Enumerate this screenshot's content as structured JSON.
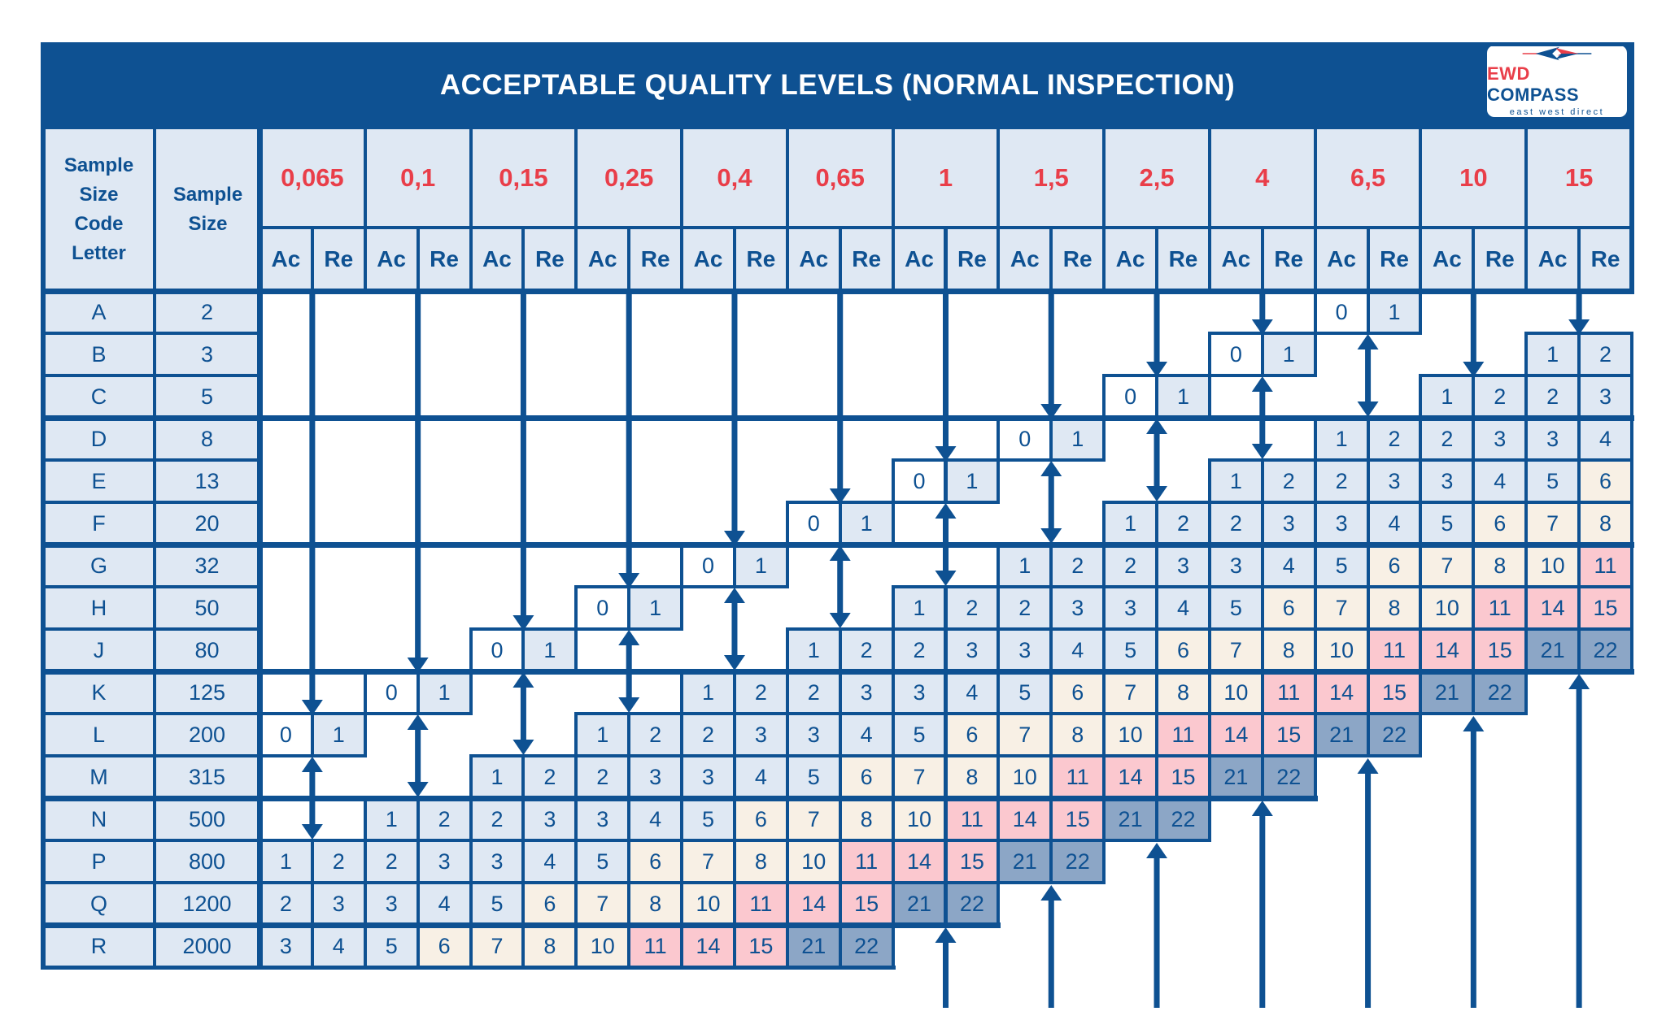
{
  "chart_data": {
    "type": "table",
    "title": "ACCEPTABLE QUALITY LEVELS (NORMAL INSPECTION)",
    "row_header_labels": [
      "Sample Size Code Letter",
      "Sample Size"
    ],
    "aql_levels": [
      "0,065",
      "0,1",
      "0,15",
      "0,25",
      "0,4",
      "0,65",
      "1",
      "1,5",
      "2,5",
      "4",
      "6,5",
      "10",
      "15"
    ],
    "sub_columns": [
      "Ac",
      "Re"
    ],
    "rows": [
      {
        "letter": "A",
        "size": "2",
        "cells": [
          null,
          null,
          null,
          null,
          null,
          null,
          null,
          null,
          null,
          null,
          [
            0,
            1
          ],
          null,
          null
        ]
      },
      {
        "letter": "B",
        "size": "3",
        "cells": [
          null,
          null,
          null,
          null,
          null,
          null,
          null,
          null,
          null,
          [
            0,
            1
          ],
          null,
          null,
          [
            1,
            2
          ]
        ]
      },
      {
        "letter": "C",
        "size": "5",
        "cells": [
          null,
          null,
          null,
          null,
          null,
          null,
          null,
          null,
          [
            0,
            1
          ],
          null,
          null,
          [
            1,
            2
          ],
          [
            2,
            3
          ]
        ]
      },
      {
        "letter": "D",
        "size": "8",
        "cells": [
          null,
          null,
          null,
          null,
          null,
          null,
          null,
          [
            0,
            1
          ],
          null,
          null,
          [
            1,
            2
          ],
          [
            2,
            3
          ],
          [
            3,
            4
          ]
        ]
      },
      {
        "letter": "E",
        "size": "13",
        "cells": [
          null,
          null,
          null,
          null,
          null,
          null,
          [
            0,
            1
          ],
          null,
          null,
          [
            1,
            2
          ],
          [
            2,
            3
          ],
          [
            3,
            4
          ],
          [
            5,
            6
          ]
        ]
      },
      {
        "letter": "F",
        "size": "20",
        "cells": [
          null,
          null,
          null,
          null,
          null,
          [
            0,
            1
          ],
          null,
          null,
          [
            1,
            2
          ],
          [
            2,
            3
          ],
          [
            3,
            4
          ],
          [
            5,
            6
          ],
          [
            7,
            8
          ]
        ]
      },
      {
        "letter": "G",
        "size": "32",
        "cells": [
          null,
          null,
          null,
          null,
          [
            0,
            1
          ],
          null,
          null,
          [
            1,
            2
          ],
          [
            2,
            3
          ],
          [
            3,
            4
          ],
          [
            5,
            6
          ],
          [
            7,
            8
          ],
          [
            10,
            11
          ]
        ]
      },
      {
        "letter": "H",
        "size": "50",
        "cells": [
          null,
          null,
          null,
          [
            0,
            1
          ],
          null,
          null,
          [
            1,
            2
          ],
          [
            2,
            3
          ],
          [
            3,
            4
          ],
          [
            5,
            6
          ],
          [
            7,
            8
          ],
          [
            10,
            11
          ],
          [
            14,
            15
          ]
        ]
      },
      {
        "letter": "J",
        "size": "80",
        "cells": [
          null,
          null,
          [
            0,
            1
          ],
          null,
          null,
          [
            1,
            2
          ],
          [
            2,
            3
          ],
          [
            3,
            4
          ],
          [
            5,
            6
          ],
          [
            7,
            8
          ],
          [
            10,
            11
          ],
          [
            14,
            15
          ],
          [
            21,
            22
          ]
        ]
      },
      {
        "letter": "K",
        "size": "125",
        "cells": [
          null,
          [
            0,
            1
          ],
          null,
          null,
          [
            1,
            2
          ],
          [
            2,
            3
          ],
          [
            3,
            4
          ],
          [
            5,
            6
          ],
          [
            7,
            8
          ],
          [
            10,
            11
          ],
          [
            14,
            15
          ],
          [
            21,
            22
          ],
          null
        ]
      },
      {
        "letter": "L",
        "size": "200",
        "cells": [
          [
            0,
            1
          ],
          null,
          null,
          [
            1,
            2
          ],
          [
            2,
            3
          ],
          [
            3,
            4
          ],
          [
            5,
            6
          ],
          [
            7,
            8
          ],
          [
            10,
            11
          ],
          [
            14,
            15
          ],
          [
            21,
            22
          ],
          null,
          null
        ]
      },
      {
        "letter": "M",
        "size": "315",
        "cells": [
          null,
          null,
          [
            1,
            2
          ],
          [
            2,
            3
          ],
          [
            3,
            4
          ],
          [
            5,
            6
          ],
          [
            7,
            8
          ],
          [
            10,
            11
          ],
          [
            14,
            15
          ],
          [
            21,
            22
          ],
          null,
          null,
          null
        ]
      },
      {
        "letter": "N",
        "size": "500",
        "cells": [
          null,
          [
            1,
            2
          ],
          [
            2,
            3
          ],
          [
            3,
            4
          ],
          [
            5,
            6
          ],
          [
            7,
            8
          ],
          [
            10,
            11
          ],
          [
            14,
            15
          ],
          [
            21,
            22
          ],
          null,
          null,
          null,
          null
        ]
      },
      {
        "letter": "P",
        "size": "800",
        "cells": [
          [
            1,
            2
          ],
          [
            2,
            3
          ],
          [
            3,
            4
          ],
          [
            5,
            6
          ],
          [
            7,
            8
          ],
          [
            10,
            11
          ],
          [
            14,
            15
          ],
          [
            21,
            22
          ],
          null,
          null,
          null,
          null,
          null
        ]
      },
      {
        "letter": "Q",
        "size": "1200",
        "cells": [
          [
            2,
            3
          ],
          [
            3,
            4
          ],
          [
            5,
            6
          ],
          [
            7,
            8
          ],
          [
            10,
            11
          ],
          [
            14,
            15
          ],
          [
            21,
            22
          ],
          null,
          null,
          null,
          null,
          null,
          null
        ]
      },
      {
        "letter": "R",
        "size": "2000",
        "cells": [
          [
            3,
            4
          ],
          [
            5,
            6
          ],
          [
            7,
            8
          ],
          [
            10,
            11
          ],
          [
            14,
            15
          ],
          [
            21,
            22
          ],
          null,
          null,
          null,
          null,
          null,
          null,
          null
        ]
      }
    ]
  },
  "logo": {
    "brand_primary": "EWD",
    "brand_secondary": "COMPASS",
    "tagline": "east west direct"
  },
  "colors": {
    "navy": "#0e5192",
    "red": "#e93e49",
    "light_blue": "#dfe8f3",
    "beige": "#f8f0e5",
    "pink": "#fbc8cf",
    "slate_blue": "#8ca6c6",
    "white": "#ffffff"
  }
}
